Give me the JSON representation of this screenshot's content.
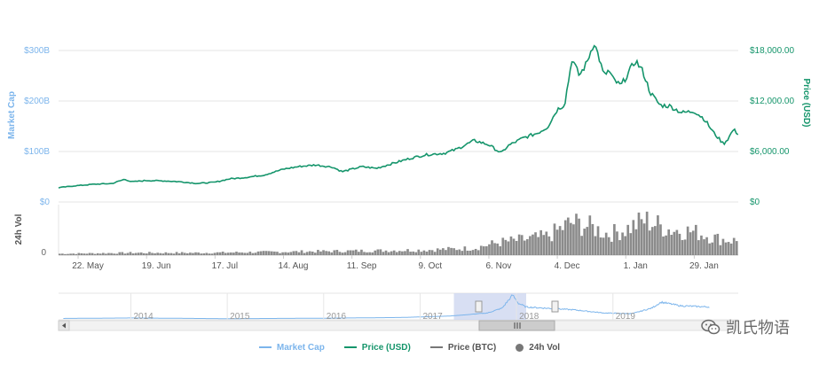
{
  "chart_data": {
    "type": "line",
    "title": "",
    "y_left_label": "Market Cap",
    "y_left_ticks": [
      "$0",
      "$100B",
      "$200B",
      "$300B"
    ],
    "y_left_tick_values": [
      0,
      100,
      200,
      300
    ],
    "y_left_range": [
      0,
      300
    ],
    "y_right_label": "Price (USD)",
    "y_right_ticks": [
      "$0",
      "$6,000.00",
      "$12,000.00",
      "$18,000.00"
    ],
    "y_right_tick_values": [
      0,
      6000,
      12000,
      18000
    ],
    "y_right_range": [
      0,
      18000
    ],
    "vol_label": "24h Vol",
    "vol_ticks": [
      "0"
    ],
    "x_ticks": [
      "22. May",
      "19. Jun",
      "17. Jul",
      "14. Aug",
      "11. Sep",
      "9. Oct",
      "6. Nov",
      "4. Dec",
      "1. Jan",
      "29. Jan"
    ],
    "x_tick_days": [
      8,
      36,
      64,
      92,
      120,
      148,
      176,
      204,
      232,
      260
    ],
    "x_range_days": [
      0,
      278
    ],
    "price_series": {
      "name": "Price (USD)",
      "color": "#15956b",
      "days": [
        0,
        6,
        14,
        22,
        27,
        30,
        36,
        44,
        50,
        57,
        64,
        70,
        76,
        84,
        92,
        98,
        105,
        112,
        116,
        120,
        124,
        130,
        138,
        144,
        150,
        158,
        163,
        170,
        176,
        181,
        184,
        190,
        196,
        200,
        204,
        207,
        210,
        213,
        216,
        219,
        221,
        223,
        225,
        227,
        230,
        232,
        236,
        239,
        242,
        246,
        250,
        255,
        260,
        264,
        268,
        272,
        274,
        276,
        278
      ],
      "values": [
        1700,
        1900,
        2100,
        2200,
        2700,
        2400,
        2550,
        2500,
        2400,
        2200,
        2350,
        2750,
        2900,
        3200,
        3900,
        4200,
        4400,
        4150,
        3600,
        3900,
        4200,
        4000,
        4700,
        5200,
        5600,
        5800,
        6300,
        7300,
        6800,
        5800,
        6700,
        7600,
        8200,
        8900,
        11000,
        11600,
        17000,
        15000,
        16500,
        19000,
        17200,
        15000,
        15600,
        14500,
        13800,
        14800,
        16800,
        15500,
        13000,
        11500,
        11400,
        10600,
        10800,
        9900,
        8200,
        6900,
        7600,
        8600,
        8100
      ]
    },
    "market_cap_series": {
      "name": "Market Cap",
      "color": "#7cb5ec",
      "note": "overlaps price line"
    },
    "volume_series": {
      "name": "24h Vol",
      "color": "#777777",
      "days": [
        0,
        30,
        60,
        90,
        120,
        150,
        170,
        180,
        190,
        200,
        210,
        218,
        225,
        232,
        240,
        250,
        260,
        270,
        278
      ],
      "values": [
        0.03,
        0.05,
        0.05,
        0.07,
        0.09,
        0.11,
        0.15,
        0.27,
        0.33,
        0.4,
        0.7,
        0.6,
        0.45,
        0.55,
        0.75,
        0.55,
        0.5,
        0.35,
        0.3
      ]
    },
    "navigator": {
      "x_ticks": [
        "2014",
        "2015",
        "2016",
        "2017",
        "2018",
        "2019"
      ],
      "x_tick_years": [
        2014,
        2015,
        2016,
        2017,
        2018,
        2019
      ],
      "x_range_years": [
        2013.25,
        2020.3
      ],
      "selected_range_years": [
        2017.35,
        2018.1
      ],
      "line_years": [
        2013.3,
        2014.0,
        2015.0,
        2016.0,
        2016.8,
        2017.3,
        2017.5,
        2017.7,
        2017.85,
        2017.96,
        2018.02,
        2018.1,
        2018.3,
        2018.6,
        2018.9,
        2019.2,
        2019.4,
        2019.5,
        2019.7,
        2020.0
      ],
      "line_values": [
        0.02,
        0.04,
        0.01,
        0.03,
        0.06,
        0.12,
        0.18,
        0.25,
        0.45,
        1.0,
        0.65,
        0.5,
        0.45,
        0.38,
        0.25,
        0.22,
        0.45,
        0.7,
        0.55,
        0.5
      ]
    },
    "legend": [
      "Market Cap",
      "Price (USD)",
      "Price (BTC)",
      "24h Vol"
    ],
    "legend_colors": [
      "#7cb5ec",
      "#15956b",
      "#777777",
      "#777777"
    ]
  },
  "watermark": {
    "text": "凯氏物语"
  }
}
